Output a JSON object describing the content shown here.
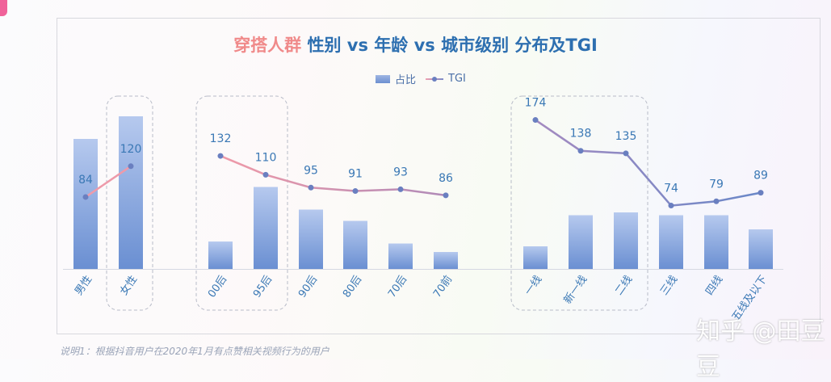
{
  "title": {
    "highlight": "穿搭人群",
    "rest": " 性别 vs 年龄 vs 城市级别 分布及TGI"
  },
  "legend": {
    "bar": "占比",
    "line": "TGI"
  },
  "note": "说明1：根据抖音用户在2020年1月有点赞相关视频行为的用户",
  "watermark": "知乎 @田豆豆",
  "colors": {
    "bar_top": "#a9bfe8",
    "bar_bottom": "#6a8fd2",
    "line_pink": "#ee9aaa",
    "line_blue": "#7388c8",
    "text": "#3a78b5"
  },
  "chart_data": {
    "type": "bar+line",
    "title": "穿搭人群 性别 vs 年龄 vs 城市级别 分布及TGI",
    "categories": [
      "男性",
      "女性",
      "00后",
      "95后",
      "90后",
      "80后",
      "70后",
      "70前",
      "一线",
      "新一线",
      "二线",
      "三线",
      "四线",
      "五线及以下"
    ],
    "groups": [
      [
        0,
        1
      ],
      [
        2,
        3,
        4,
        5,
        6,
        7
      ],
      [
        8,
        9,
        10,
        11,
        12,
        13
      ]
    ],
    "highlighted": [
      [
        1
      ],
      [
        2,
        3
      ],
      [
        8,
        9,
        10
      ]
    ],
    "series": [
      {
        "name": "占比",
        "type": "bar",
        "unit": "% (estimated)",
        "values": [
          46,
          54,
          9.7,
          29,
          21,
          17,
          9,
          6,
          8,
          19,
          20,
          19,
          19,
          14
        ]
      },
      {
        "name": "TGI",
        "type": "line",
        "values": [
          84,
          120,
          132,
          110,
          95,
          91,
          93,
          86,
          174,
          138,
          135,
          74,
          79,
          89
        ]
      }
    ]
  }
}
